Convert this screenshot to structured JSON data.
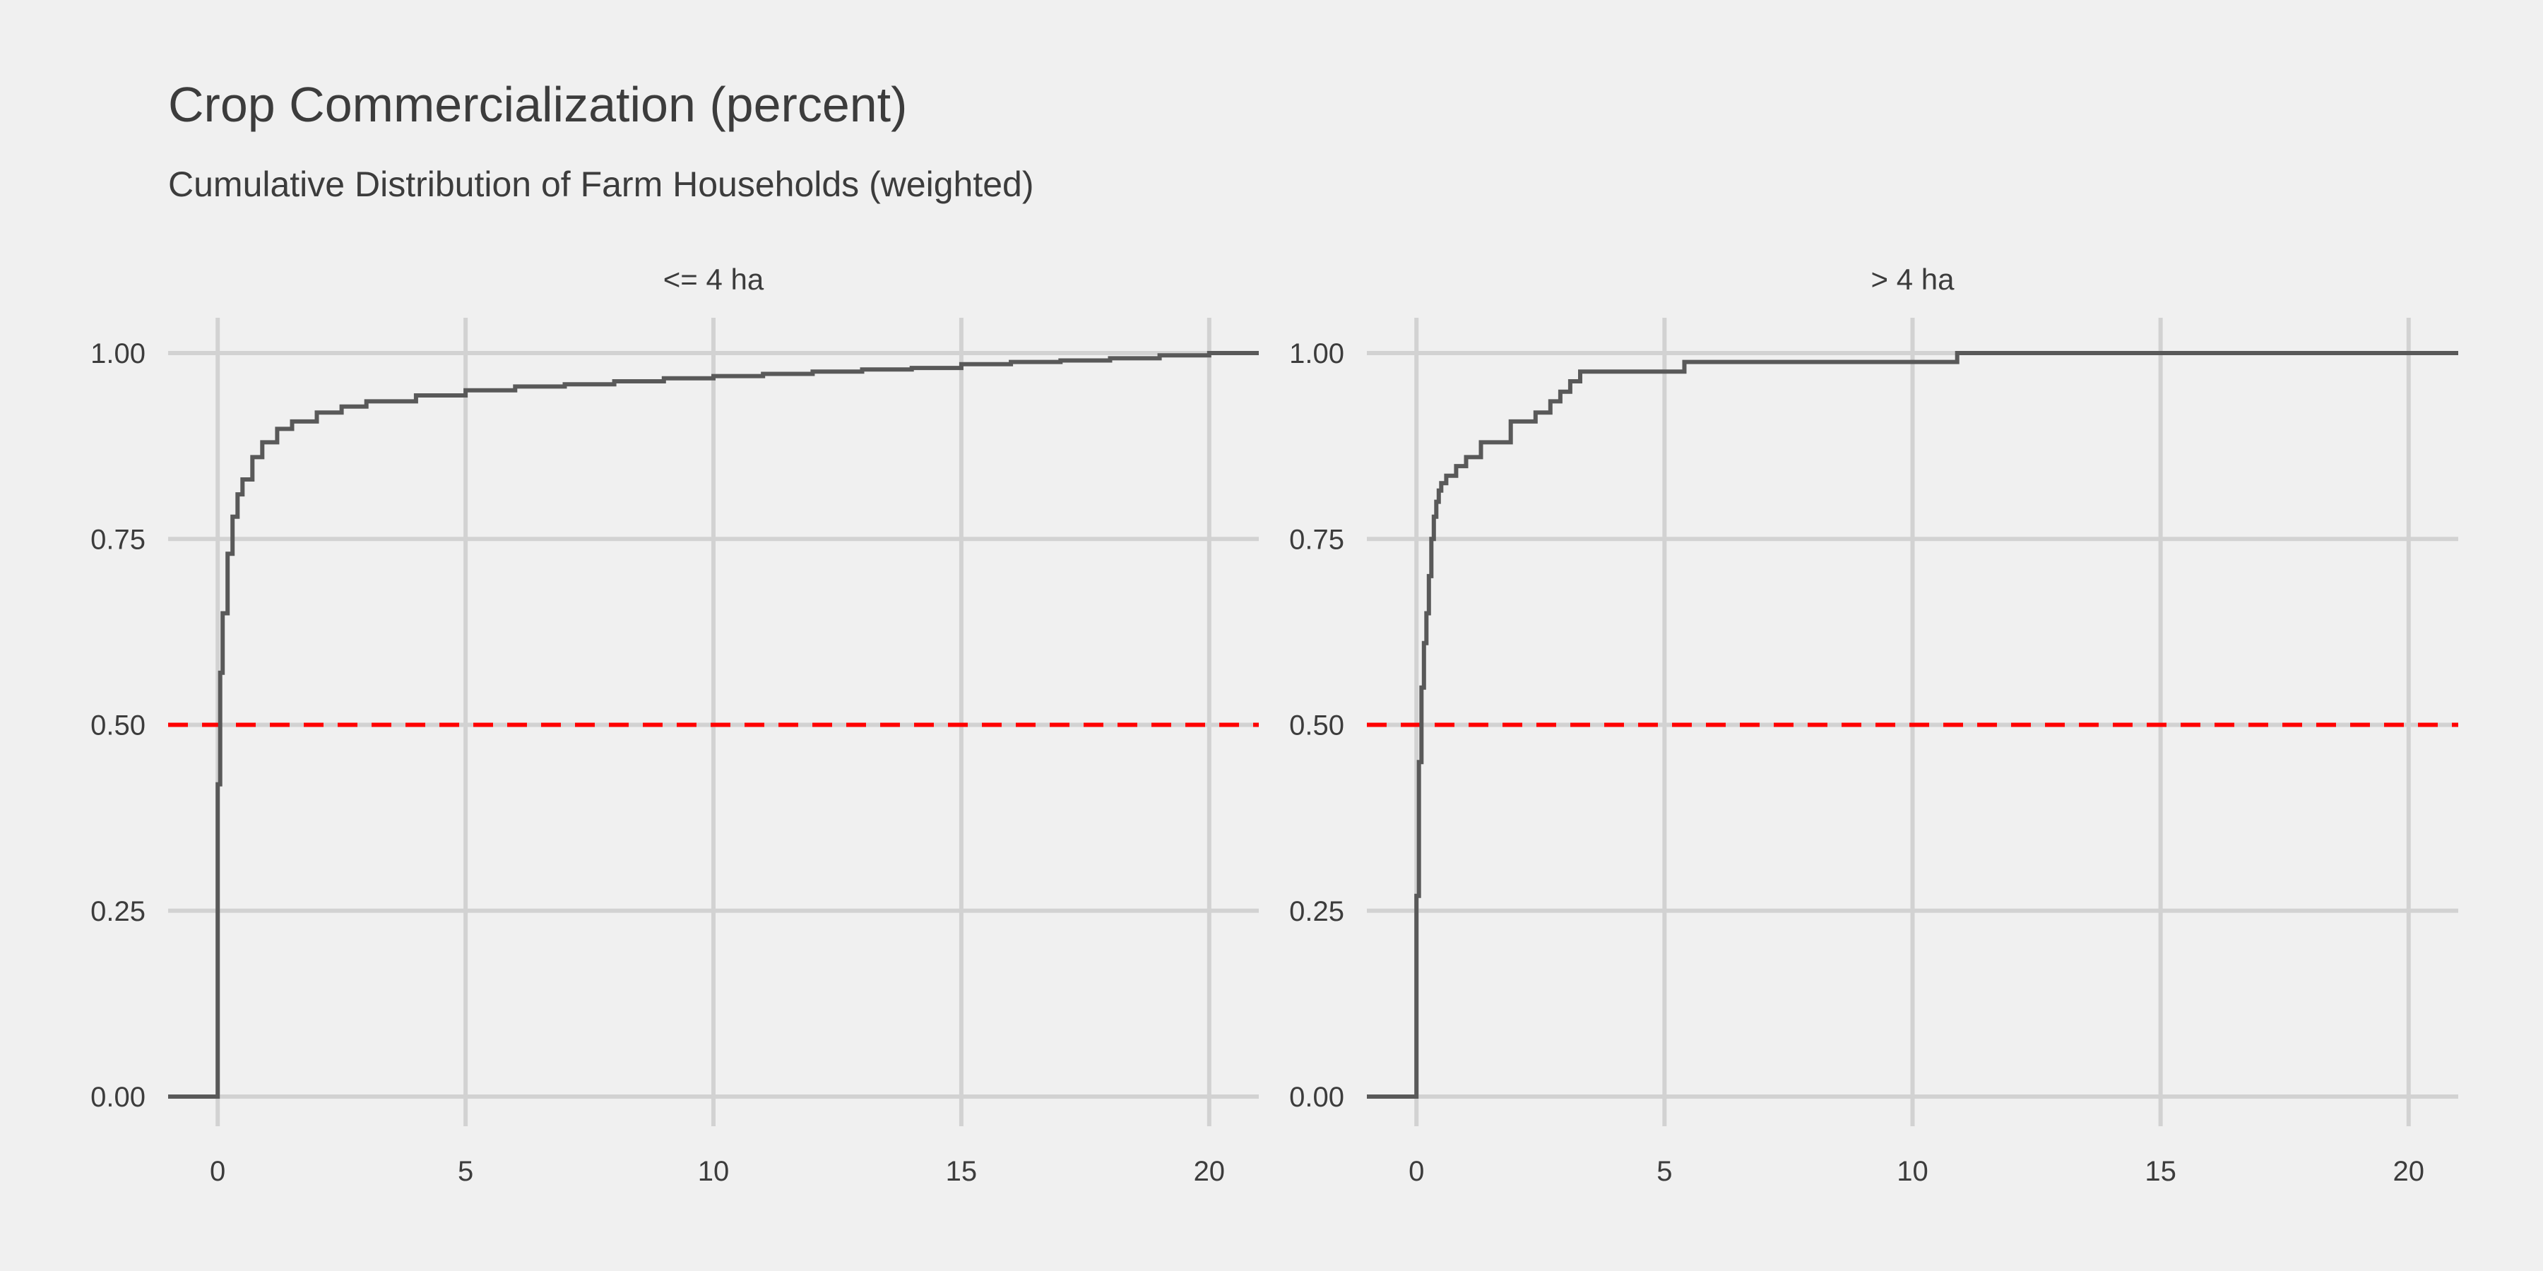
{
  "chart_data": {
    "type": "line",
    "title": "Crop Commercialization (percent)",
    "subtitle": "Cumulative Distribution of Farm Households (weighted)",
    "xlabel": "",
    "ylabel": "",
    "xlim": [
      -1,
      21
    ],
    "ylim": [
      0,
      1
    ],
    "x_ticks": [
      0,
      5,
      10,
      15,
      20
    ],
    "y_ticks": [
      0,
      0.25,
      0.5,
      0.75,
      1.0
    ],
    "x_tick_labels": [
      "0",
      "5",
      "10",
      "15",
      "20"
    ],
    "y_tick_labels": [
      "0.00",
      "0.25",
      "0.50",
      "0.75",
      "1.00"
    ],
    "grid": true,
    "reference_line": {
      "y": 0.5,
      "color": "#ff0000",
      "style": "dashed"
    },
    "line_color": "#595959",
    "panels": [
      {
        "label": "<= 4 ha",
        "series": [
          {
            "x": [
              -1,
              0,
              0,
              0.05,
              0.1,
              0.2,
              0.3,
              0.4,
              0.5,
              0.7,
              0.9,
              1.2,
              1.5,
              2,
              2.5,
              3,
              4,
              5,
              6,
              7,
              8,
              9,
              10,
              11,
              12,
              13,
              14,
              15,
              16,
              17,
              18,
              19,
              20,
              21
            ],
            "y": [
              0,
              0,
              0.42,
              0.57,
              0.65,
              0.73,
              0.78,
              0.81,
              0.83,
              0.86,
              0.88,
              0.898,
              0.908,
              0.92,
              0.928,
              0.935,
              0.943,
              0.95,
              0.955,
              0.958,
              0.962,
              0.966,
              0.969,
              0.972,
              0.975,
              0.978,
              0.98,
              0.985,
              0.988,
              0.99,
              0.993,
              0.997,
              1.0,
              1.0
            ]
          }
        ]
      },
      {
        "label": "> 4 ha",
        "series": [
          {
            "x": [
              -1,
              0,
              0,
              0.05,
              0.1,
              0.15,
              0.2,
              0.25,
              0.3,
              0.35,
              0.4,
              0.45,
              0.5,
              0.6,
              0.8,
              1.0,
              1.3,
              1.9,
              2.4,
              2.7,
              2.9,
              3.1,
              3.3,
              5.4,
              10.9,
              21
            ],
            "y": [
              0,
              0,
              0.27,
              0.45,
              0.55,
              0.61,
              0.65,
              0.7,
              0.75,
              0.78,
              0.8,
              0.815,
              0.825,
              0.835,
              0.848,
              0.86,
              0.88,
              0.908,
              0.92,
              0.935,
              0.948,
              0.962,
              0.975,
              0.988,
              1.0,
              1.0
            ]
          }
        ]
      }
    ]
  }
}
